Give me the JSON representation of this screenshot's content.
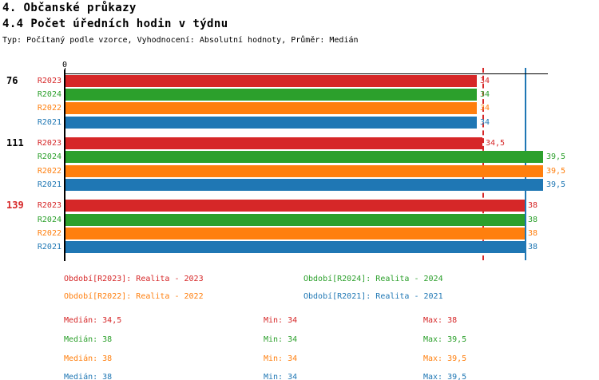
{
  "header": {
    "title_line1": "4. Občanské průkazy",
    "title_line2": "4.4 Počet úředních hodin v týdnu",
    "meta_line": "Typ: Počítaný podle vzorce, Vyhodnocení: Absolutní hodnoty, Průměr: Medián"
  },
  "palette": {
    "R2023": "#d62728",
    "R2024": "#2ca02c",
    "R2022": "#ff7f0e",
    "R2021": "#1f77b4",
    "axis": "#000000"
  },
  "chart_data": {
    "type": "bar",
    "orientation": "horizontal",
    "title": "4. Občanské průkazy — 4.4 Počet úředních hodin v týdnu",
    "x_axis": {
      "min": 0,
      "max": 39.9,
      "zero_label": "0",
      "grid": false
    },
    "series_order": [
      "R2023",
      "R2024",
      "R2022",
      "R2021"
    ],
    "groups": [
      {
        "label": "76",
        "label_color": "#000000",
        "bars": [
          {
            "series": "R2023",
            "value": 34,
            "display": "34",
            "color": "#d62728"
          },
          {
            "series": "R2024",
            "value": 34,
            "display": "34",
            "color": "#2ca02c"
          },
          {
            "series": "R2022",
            "value": 34,
            "display": "34",
            "color": "#ff7f0e"
          },
          {
            "series": "R2021",
            "value": 34,
            "display": "34",
            "color": "#1f77b4"
          }
        ]
      },
      {
        "label": "111",
        "label_color": "#000000",
        "bars": [
          {
            "series": "R2023",
            "value": 34.5,
            "display": "34,5",
            "color": "#d62728"
          },
          {
            "series": "R2024",
            "value": 39.5,
            "display": "39,5",
            "color": "#2ca02c"
          },
          {
            "series": "R2022",
            "value": 39.5,
            "display": "39,5",
            "color": "#ff7f0e"
          },
          {
            "series": "R2021",
            "value": 39.5,
            "display": "39,5",
            "color": "#1f77b4"
          }
        ]
      },
      {
        "label": "139",
        "label_color": "#d62728",
        "bars": [
          {
            "series": "R2023",
            "value": 38,
            "display": "38",
            "color": "#d62728"
          },
          {
            "series": "R2024",
            "value": 38,
            "display": "38",
            "color": "#2ca02c"
          },
          {
            "series": "R2022",
            "value": 38,
            "display": "38",
            "color": "#ff7f0e"
          },
          {
            "series": "R2021",
            "value": 38,
            "display": "38",
            "color": "#1f77b4"
          }
        ]
      }
    ],
    "reference_lines": [
      {
        "value": 34.5,
        "color": "#d62728",
        "style": "dashed"
      },
      {
        "value": 38,
        "color": "#1f77b4",
        "style": "solid"
      }
    ],
    "legend": [
      {
        "label": "Období[R2023]: Realita - 2023",
        "color": "#d62728"
      },
      {
        "label": "Období[R2024]: Realita - 2024",
        "color": "#2ca02c"
      },
      {
        "label": "Období[R2022]: Realita - 2022",
        "color": "#ff7f0e"
      },
      {
        "label": "Období[R2021]: Realita - 2021",
        "color": "#1f77b4"
      }
    ],
    "stats": [
      {
        "series": "R2023",
        "color": "#d62728",
        "median_label": "Medián: 34,5",
        "min_label": "Min: 34",
        "max_label": "Max: 38"
      },
      {
        "series": "R2024",
        "color": "#2ca02c",
        "median_label": "Medián: 38",
        "min_label": "Min: 34",
        "max_label": "Max: 39,5"
      },
      {
        "series": "R2022",
        "color": "#ff7f0e",
        "median_label": "Medián: 38",
        "min_label": "Min: 34",
        "max_label": "Max: 39,5"
      },
      {
        "series": "R2021",
        "color": "#1f77b4",
        "median_label": "Medián: 38",
        "min_label": "Min: 34",
        "max_label": "Max: 39,5"
      }
    ]
  }
}
